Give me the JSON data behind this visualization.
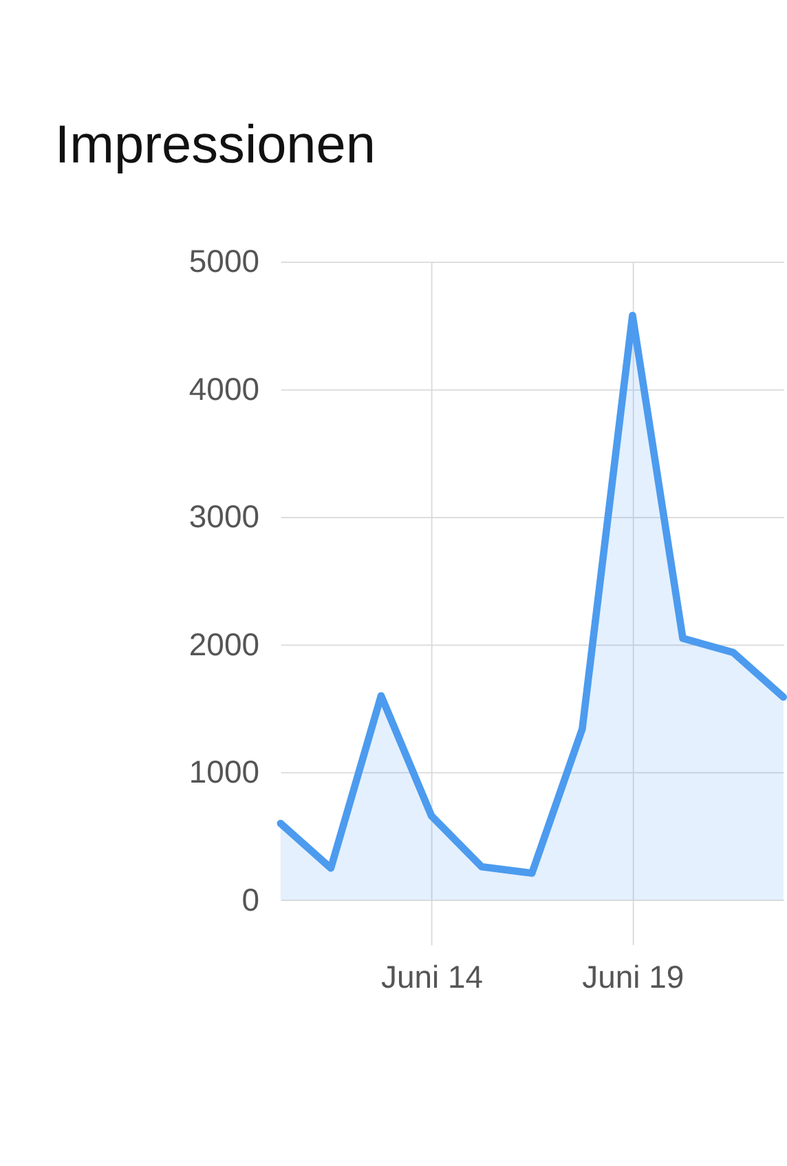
{
  "chart_data": {
    "type": "area",
    "title": "Impressionen",
    "categories": [
      null,
      null,
      null,
      "Juni 14",
      null,
      null,
      null,
      "Juni 19",
      null,
      null,
      null
    ],
    "series": [
      {
        "color": "#4c9bef",
        "values": [
          600,
          250,
          1600,
          660,
          260,
          210,
          1340,
          4580,
          2050,
          1940,
          1590
        ]
      }
    ],
    "ylim": [
      -350,
      5000
    ],
    "yticks": [
      0,
      1000,
      2000,
      3000,
      4000,
      5000
    ],
    "grid": true
  }
}
